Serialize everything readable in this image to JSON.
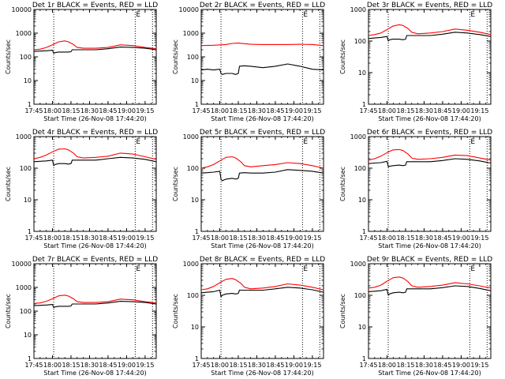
{
  "figure": {
    "time_ticks": [
      "17:45",
      "18:00",
      "18:15",
      "18:30",
      "18:45",
      "19:00",
      "19:15"
    ],
    "xlabel": "Start Time (26-Nov-08 17:44:20)",
    "colors": {
      "events": "#000000",
      "lld": "#ff0000",
      "axes": "#000000",
      "background": "#ffffff"
    }
  },
  "chart_data": [
    {
      "type": "line",
      "title": "Det 1r BLACK = Events, RED = LLD",
      "ylabel": "Counts/sec",
      "yscale": "log",
      "ylim": [
        1,
        10000
      ],
      "ytick_values": [
        1,
        10,
        100,
        1000,
        10000
      ],
      "ytick_labels": [
        "1",
        "10",
        "100",
        "1000",
        "10000"
      ],
      "xlim_minutes": [
        0,
        99
      ],
      "vlines_minutes": [
        16,
        82,
        96
      ],
      "annotation": {
        "text": "E",
        "x_minutes": 82
      },
      "series": [
        {
          "name": "LLD",
          "color": "#ff0000",
          "x": [
            0,
            5,
            10,
            15,
            20,
            25,
            28,
            32,
            35,
            40,
            50,
            60,
            70,
            80,
            90,
            99
          ],
          "y": [
            200,
            210,
            250,
            320,
            430,
            470,
            430,
            330,
            250,
            230,
            230,
            250,
            320,
            300,
            250,
            220
          ]
        },
        {
          "name": "Events",
          "color": "#000000",
          "x": [
            0,
            5,
            10,
            15,
            16,
            17,
            20,
            25,
            28,
            30,
            31,
            35,
            40,
            50,
            60,
            70,
            80,
            90,
            99
          ],
          "y": [
            170,
            175,
            180,
            190,
            140,
            150,
            160,
            160,
            160,
            165,
            200,
            200,
            200,
            200,
            220,
            260,
            250,
            230,
            200
          ]
        }
      ]
    },
    {
      "type": "line",
      "title": "Det 2r BLACK = Events, RED = LLD",
      "ylabel": "Counts/sec",
      "yscale": "log",
      "ylim": [
        1,
        10000
      ],
      "ytick_values": [
        1,
        10,
        100,
        1000,
        10000
      ],
      "ytick_labels": [
        "1",
        "10",
        "100",
        "1000",
        "10000"
      ],
      "xlim_minutes": [
        0,
        99
      ],
      "vlines_minutes": [
        16,
        82,
        96
      ],
      "annotation": {
        "text": "E",
        "x_minutes": 82
      },
      "series": [
        {
          "name": "LLD",
          "color": "#ff0000",
          "x": [
            0,
            10,
            20,
            25,
            30,
            40,
            50,
            60,
            70,
            80,
            90,
            99
          ],
          "y": [
            300,
            310,
            330,
            370,
            380,
            340,
            330,
            330,
            330,
            340,
            330,
            300
          ]
        },
        {
          "name": "Events",
          "color": "#000000",
          "x": [
            0,
            5,
            10,
            15,
            16,
            17,
            20,
            25,
            28,
            30,
            31,
            35,
            40,
            50,
            60,
            70,
            80,
            90,
            99
          ],
          "y": [
            28,
            30,
            28,
            30,
            20,
            18,
            20,
            20,
            18,
            20,
            40,
            42,
            40,
            35,
            40,
            50,
            40,
            30,
            28
          ]
        }
      ]
    },
    {
      "type": "line",
      "title": "Det 3r BLACK = Events, RED = LLD",
      "ylabel": "Counts/sec",
      "yscale": "log",
      "ylim": [
        1,
        1000
      ],
      "ytick_values": [
        1,
        10,
        100,
        1000
      ],
      "ytick_labels": [
        "1",
        "10",
        "100",
        "1000"
      ],
      "xlim_minutes": [
        0,
        99
      ],
      "vlines_minutes": [
        16,
        82,
        96
      ],
      "annotation": {
        "text": "E",
        "x_minutes": 82
      },
      "series": [
        {
          "name": "LLD",
          "color": "#ff0000",
          "x": [
            0,
            5,
            10,
            15,
            20,
            25,
            28,
            32,
            35,
            40,
            50,
            60,
            70,
            80,
            90,
            99
          ],
          "y": [
            150,
            160,
            180,
            230,
            300,
            330,
            310,
            250,
            190,
            170,
            180,
            200,
            240,
            220,
            190,
            160
          ]
        },
        {
          "name": "Events",
          "color": "#000000",
          "x": [
            0,
            5,
            10,
            15,
            16,
            17,
            20,
            25,
            28,
            30,
            31,
            35,
            40,
            50,
            60,
            70,
            80,
            90,
            99
          ],
          "y": [
            120,
            125,
            130,
            140,
            100,
            110,
            115,
            115,
            110,
            115,
            150,
            150,
            150,
            150,
            165,
            190,
            180,
            160,
            140
          ]
        }
      ]
    },
    {
      "type": "line",
      "title": "Det 4r BLACK = Events, RED = LLD",
      "ylabel": "Counts/sec",
      "yscale": "log",
      "ylim": [
        1,
        1000
      ],
      "ytick_values": [
        1,
        10,
        100,
        1000
      ],
      "ytick_labels": [
        "1",
        "10",
        "100",
        "1000"
      ],
      "xlim_minutes": [
        0,
        99
      ],
      "vlines_minutes": [
        16,
        82,
        96
      ],
      "annotation": {
        "text": "E",
        "x_minutes": 82
      },
      "series": [
        {
          "name": "LLD",
          "color": "#ff0000",
          "x": [
            0,
            5,
            10,
            15,
            20,
            25,
            28,
            32,
            35,
            40,
            50,
            60,
            70,
            80,
            90,
            99
          ],
          "y": [
            200,
            220,
            260,
            330,
            400,
            410,
            380,
            300,
            230,
            210,
            220,
            240,
            300,
            280,
            230,
            190
          ]
        },
        {
          "name": "Events",
          "color": "#000000",
          "x": [
            0,
            5,
            10,
            15,
            16,
            17,
            20,
            25,
            28,
            30,
            31,
            35,
            40,
            50,
            60,
            70,
            80,
            90,
            99
          ],
          "y": [
            160,
            165,
            170,
            180,
            120,
            130,
            140,
            140,
            135,
            140,
            180,
            180,
            180,
            180,
            200,
            220,
            210,
            190,
            160
          ]
        }
      ]
    },
    {
      "type": "line",
      "title": "Det 5r BLACK = Events, RED = LLD",
      "ylabel": "Counts/sec",
      "yscale": "log",
      "ylim": [
        1,
        1000
      ],
      "ytick_values": [
        1,
        10,
        100,
        1000
      ],
      "ytick_labels": [
        "1",
        "10",
        "100",
        "1000"
      ],
      "xlim_minutes": [
        0,
        99
      ],
      "vlines_minutes": [
        16,
        82,
        96
      ],
      "annotation": {
        "text": "E",
        "x_minutes": 82
      },
      "series": [
        {
          "name": "LLD",
          "color": "#ff0000",
          "x": [
            0,
            5,
            10,
            15,
            20,
            25,
            28,
            32,
            35,
            40,
            50,
            60,
            70,
            80,
            90,
            99
          ],
          "y": [
            100,
            110,
            130,
            170,
            220,
            230,
            210,
            160,
            120,
            110,
            120,
            130,
            150,
            140,
            120,
            100
          ]
        },
        {
          "name": "Events",
          "color": "#000000",
          "x": [
            0,
            5,
            10,
            15,
            16,
            17,
            20,
            25,
            28,
            30,
            31,
            35,
            40,
            50,
            60,
            70,
            80,
            90,
            99
          ],
          "y": [
            70,
            72,
            75,
            80,
            45,
            40,
            45,
            48,
            45,
            48,
            70,
            72,
            70,
            70,
            75,
            90,
            85,
            80,
            70
          ]
        }
      ]
    },
    {
      "type": "line",
      "title": "Det 6r BLACK = Events, RED = LLD",
      "ylabel": "Counts/sec",
      "yscale": "log",
      "ylim": [
        1,
        1000
      ],
      "ytick_values": [
        1,
        10,
        100,
        1000
      ],
      "ytick_labels": [
        "1",
        "10",
        "100",
        "1000"
      ],
      "xlim_minutes": [
        0,
        99
      ],
      "vlines_minutes": [
        16,
        82,
        96
      ],
      "annotation": {
        "text": "E",
        "x_minutes": 82
      },
      "series": [
        {
          "name": "LLD",
          "color": "#ff0000",
          "x": [
            0,
            5,
            10,
            15,
            20,
            25,
            28,
            32,
            35,
            40,
            50,
            60,
            70,
            80,
            90,
            99
          ],
          "y": [
            180,
            200,
            240,
            310,
            380,
            390,
            360,
            280,
            210,
            190,
            200,
            220,
            260,
            250,
            210,
            180
          ]
        },
        {
          "name": "Events",
          "color": "#000000",
          "x": [
            0,
            5,
            10,
            15,
            16,
            17,
            20,
            25,
            28,
            30,
            31,
            35,
            40,
            50,
            60,
            70,
            80,
            90,
            99
          ],
          "y": [
            140,
            145,
            150,
            165,
            110,
            115,
            120,
            125,
            120,
            125,
            160,
            160,
            160,
            160,
            175,
            200,
            190,
            170,
            145
          ]
        }
      ]
    },
    {
      "type": "line",
      "title": "Det 7r BLACK = Events, RED = LLD",
      "ylabel": "Counts/sec",
      "yscale": "log",
      "ylim": [
        1,
        10000
      ],
      "ytick_values": [
        1,
        10,
        100,
        1000,
        10000
      ],
      "ytick_labels": [
        "1",
        "10",
        "100",
        "1000",
        "10000"
      ],
      "xlim_minutes": [
        0,
        99
      ],
      "vlines_minutes": [
        16,
        82,
        96
      ],
      "annotation": {
        "text": "E",
        "x_minutes": 82
      },
      "series": [
        {
          "name": "LLD",
          "color": "#ff0000",
          "x": [
            0,
            5,
            10,
            15,
            20,
            25,
            28,
            32,
            35,
            40,
            50,
            60,
            70,
            80,
            90,
            99
          ],
          "y": [
            210,
            220,
            260,
            330,
            440,
            470,
            430,
            330,
            250,
            230,
            230,
            250,
            320,
            300,
            250,
            220
          ]
        },
        {
          "name": "Events",
          "color": "#000000",
          "x": [
            0,
            5,
            10,
            15,
            16,
            17,
            20,
            25,
            28,
            30,
            31,
            35,
            40,
            50,
            60,
            70,
            80,
            90,
            99
          ],
          "y": [
            170,
            175,
            180,
            190,
            140,
            150,
            160,
            160,
            160,
            165,
            200,
            200,
            200,
            200,
            220,
            260,
            250,
            230,
            200
          ]
        }
      ]
    },
    {
      "type": "line",
      "title": "Det 8r BLACK = Events, RED = LLD",
      "ylabel": "Counts/sec",
      "yscale": "log",
      "ylim": [
        1,
        1000
      ],
      "ytick_values": [
        1,
        10,
        100,
        1000
      ],
      "ytick_labels": [
        "1",
        "10",
        "100",
        "1000"
      ],
      "xlim_minutes": [
        0,
        99
      ],
      "vlines_minutes": [
        16,
        82,
        96
      ],
      "annotation": {
        "text": "E",
        "x_minutes": 82
      },
      "series": [
        {
          "name": "LLD",
          "color": "#ff0000",
          "x": [
            0,
            5,
            10,
            15,
            20,
            25,
            28,
            32,
            35,
            40,
            50,
            60,
            70,
            80,
            90,
            99
          ],
          "y": [
            150,
            160,
            190,
            250,
            320,
            340,
            310,
            240,
            180,
            160,
            170,
            190,
            230,
            210,
            180,
            150
          ]
        },
        {
          "name": "Events",
          "color": "#000000",
          "x": [
            0,
            5,
            10,
            15,
            16,
            17,
            20,
            25,
            28,
            30,
            31,
            35,
            40,
            50,
            60,
            70,
            80,
            90,
            99
          ],
          "y": [
            120,
            125,
            130,
            145,
            90,
            100,
            110,
            115,
            110,
            115,
            145,
            145,
            145,
            145,
            160,
            180,
            170,
            150,
            125
          ]
        }
      ]
    },
    {
      "type": "line",
      "title": "Det 9r BLACK = Events, RED = LLD",
      "ylabel": "Counts/sec",
      "yscale": "log",
      "ylim": [
        1,
        1000
      ],
      "ytick_values": [
        1,
        10,
        100,
        1000
      ],
      "ytick_labels": [
        "1",
        "10",
        "100",
        "1000"
      ],
      "xlim_minutes": [
        0,
        99
      ],
      "vlines_minutes": [
        16,
        82,
        96
      ],
      "annotation": {
        "text": "E",
        "x_minutes": 82
      },
      "series": [
        {
          "name": "LLD",
          "color": "#ff0000",
          "x": [
            0,
            5,
            10,
            15,
            20,
            25,
            28,
            32,
            35,
            40,
            50,
            60,
            70,
            80,
            90,
            99
          ],
          "y": [
            170,
            180,
            210,
            280,
            360,
            380,
            350,
            270,
            200,
            180,
            190,
            210,
            250,
            230,
            200,
            170
          ]
        },
        {
          "name": "Events",
          "color": "#000000",
          "x": [
            0,
            5,
            10,
            15,
            16,
            17,
            20,
            25,
            28,
            30,
            31,
            35,
            40,
            50,
            60,
            70,
            80,
            90,
            99
          ],
          "y": [
            130,
            135,
            140,
            155,
            100,
            110,
            120,
            125,
            120,
            125,
            160,
            160,
            160,
            160,
            175,
            200,
            190,
            165,
            140
          ]
        }
      ]
    }
  ]
}
